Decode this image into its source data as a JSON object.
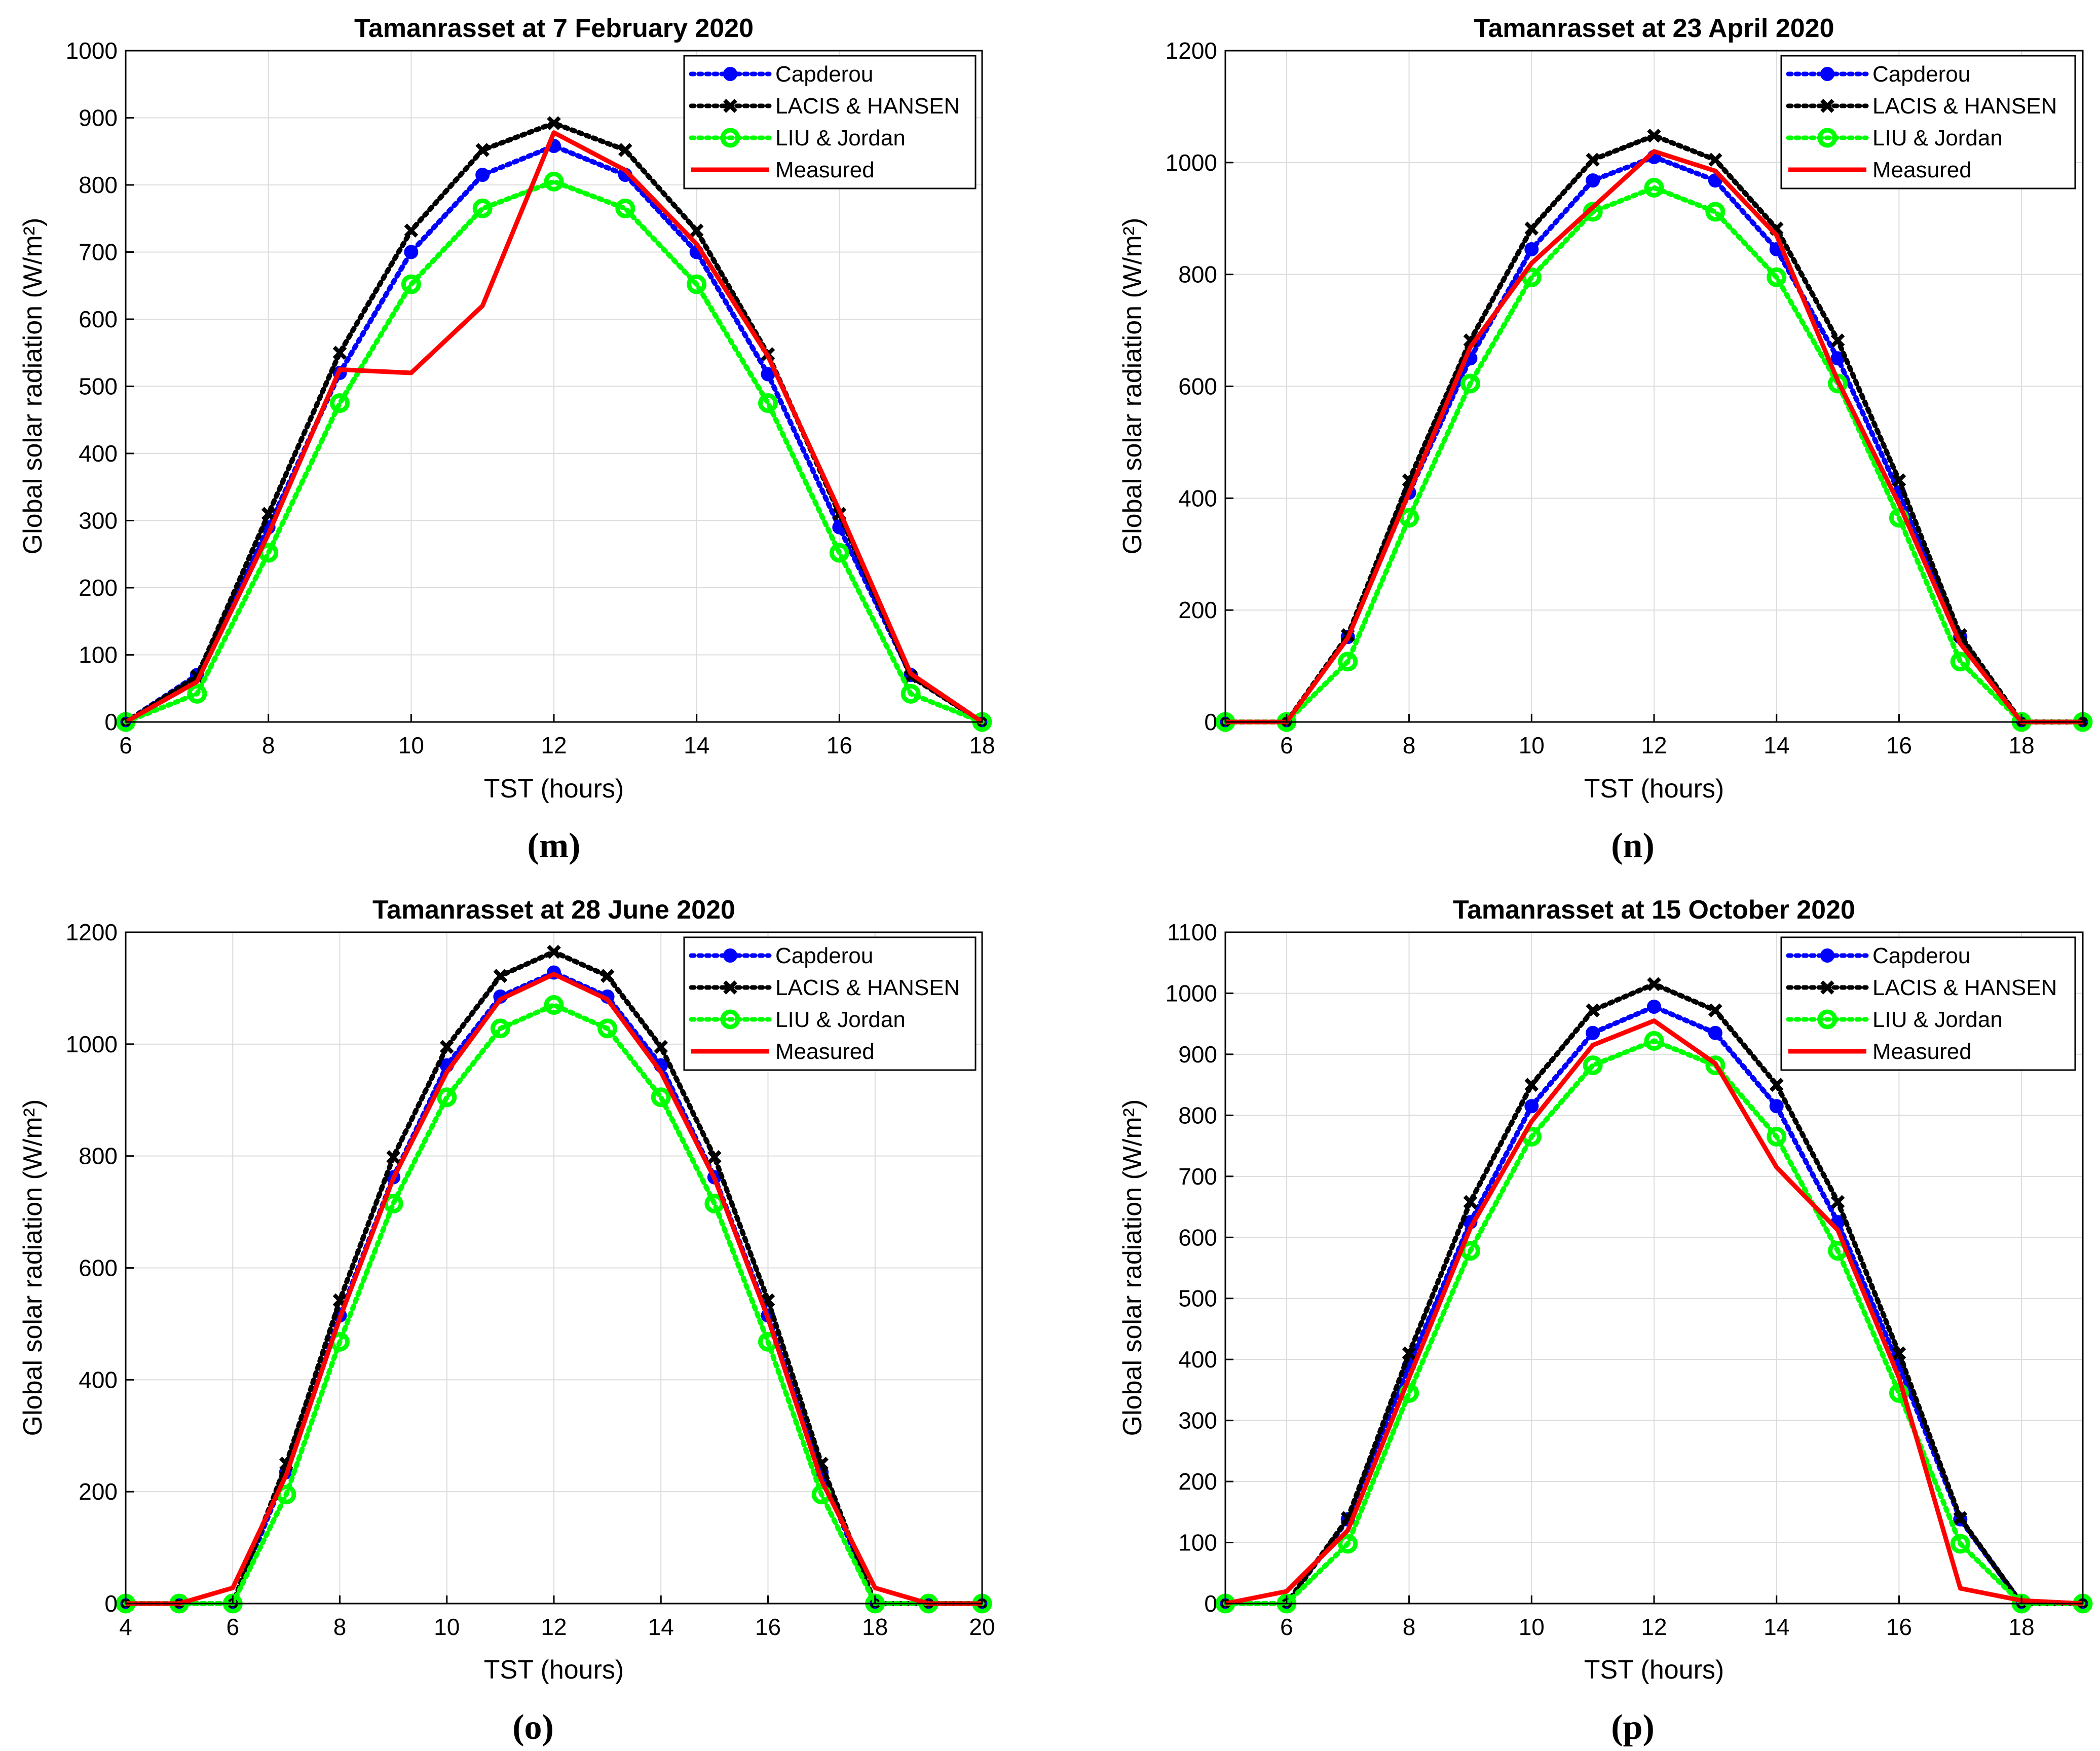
{
  "colors": {
    "capderou": "#0000ff",
    "lacis": "#000000",
    "liu": "#00ff00",
    "measured": "#ff0000",
    "grid": "#dcdcdc"
  },
  "chart_data": [
    {
      "id": "m",
      "type": "line",
      "caption_letter": "m",
      "title": "Tamanrasset at 7 February 2020",
      "xlabel": "TST (hours)",
      "ylabel": "Global solar radiation (W/m²)",
      "xlim": [
        6,
        18
      ],
      "ylim": [
        0,
        1000
      ],
      "xticks": [
        "6",
        "8",
        "10",
        "12",
        "14",
        "16",
        "18"
      ],
      "yticks": [
        "0",
        "100",
        "200",
        "300",
        "400",
        "500",
        "600",
        "700",
        "800",
        "900",
        "1000"
      ],
      "legend_position": "top-right",
      "series": [
        {
          "name": "Capderou",
          "x": [
            6,
            7,
            8,
            9,
            10,
            11,
            12,
            13,
            14,
            15,
            16,
            17,
            18
          ],
          "values": [
            0,
            70,
            290,
            520,
            700,
            815,
            858,
            815,
            700,
            518,
            290,
            70,
            0
          ]
        },
        {
          "name": "LACIS & HANSEN",
          "x": [
            6,
            7,
            8,
            9,
            10,
            11,
            12,
            13,
            14,
            15,
            16,
            17,
            18
          ],
          "values": [
            0,
            68,
            310,
            550,
            732,
            852,
            892,
            852,
            732,
            548,
            310,
            68,
            0
          ]
        },
        {
          "name": "LIU & Jordan",
          "x": [
            6,
            7,
            8,
            9,
            10,
            11,
            12,
            13,
            14,
            15,
            16,
            17,
            18
          ],
          "values": [
            0,
            42,
            252,
            475,
            652,
            765,
            805,
            765,
            652,
            475,
            252,
            42,
            0
          ]
        },
        {
          "name": "Measured",
          "x": [
            6,
            7,
            8,
            9,
            10,
            11,
            12,
            13,
            14,
            15,
            16,
            17,
            18
          ],
          "values": [
            0,
            60,
            280,
            525,
            520,
            620,
            878,
            822,
            712,
            545,
            315,
            72,
            0
          ]
        }
      ]
    },
    {
      "id": "n",
      "type": "line",
      "caption_letter": "n",
      "title": "Tamanrasset at 23 April 2020",
      "xlabel": "TST (hours)",
      "ylabel": "Global solar radiation (W/m²)",
      "xlim": [
        5,
        19
      ],
      "ylim": [
        0,
        1200
      ],
      "xticks": [
        "6",
        "8",
        "10",
        "12",
        "14",
        "16",
        "18"
      ],
      "yticks": [
        "0",
        "200",
        "400",
        "600",
        "800",
        "1000",
        "1200"
      ],
      "legend_position": "top-right",
      "series": [
        {
          "name": "Capderou",
          "x": [
            5,
            6,
            7,
            8,
            9,
            10,
            11,
            12,
            13,
            14,
            15,
            16,
            17,
            18,
            19
          ],
          "values": [
            0,
            0,
            152,
            410,
            650,
            845,
            968,
            1010,
            968,
            845,
            650,
            410,
            152,
            0,
            0
          ]
        },
        {
          "name": "LACIS & HANSEN",
          "x": [
            5,
            6,
            7,
            8,
            9,
            10,
            11,
            12,
            13,
            14,
            15,
            16,
            17,
            18,
            19
          ],
          "values": [
            0,
            0,
            155,
            432,
            682,
            882,
            1005,
            1048,
            1005,
            882,
            682,
            432,
            155,
            0,
            0
          ]
        },
        {
          "name": "LIU & Jordan",
          "x": [
            5,
            6,
            7,
            8,
            9,
            10,
            11,
            12,
            13,
            14,
            15,
            16,
            17,
            18,
            19
          ],
          "values": [
            0,
            0,
            108,
            365,
            605,
            795,
            912,
            955,
            912,
            795,
            605,
            365,
            108,
            0,
            0
          ]
        },
        {
          "name": "Measured",
          "x": [
            5,
            6,
            7,
            8,
            9,
            10,
            11,
            12,
            13,
            14,
            15,
            16,
            17,
            18,
            19
          ],
          "values": [
            0,
            0,
            150,
            410,
            670,
            820,
            920,
            1020,
            985,
            870,
            610,
            390,
            140,
            0,
            0
          ]
        }
      ]
    },
    {
      "id": "o",
      "type": "line",
      "caption_letter": "o",
      "title": "Tamanrasset at 28 June 2020",
      "xlabel": "TST (hours)",
      "ylabel": "Global solar radiation (W/m²)",
      "xlim": [
        4,
        20
      ],
      "ylim": [
        0,
        1200
      ],
      "xticks": [
        "4",
        "6",
        "8",
        "10",
        "12",
        "14",
        "16",
        "18",
        "20"
      ],
      "yticks": [
        "0",
        "200",
        "400",
        "600",
        "800",
        "1000",
        "1200"
      ],
      "legend_position": "top-right",
      "series": [
        {
          "name": "Capderou",
          "x": [
            4,
            5,
            6,
            7,
            8,
            9,
            10,
            11,
            12,
            13,
            14,
            15,
            16,
            17,
            18,
            19,
            20
          ],
          "values": [
            0,
            0,
            0,
            235,
            515,
            762,
            962,
            1085,
            1128,
            1085,
            962,
            762,
            515,
            235,
            0,
            0,
            0
          ]
        },
        {
          "name": "LACIS & HANSEN",
          "x": [
            4,
            5,
            6,
            7,
            8,
            9,
            10,
            11,
            12,
            13,
            14,
            15,
            16,
            17,
            18,
            19,
            20
          ],
          "values": [
            0,
            0,
            0,
            250,
            542,
            798,
            995,
            1122,
            1165,
            1122,
            995,
            798,
            542,
            250,
            0,
            0,
            0
          ]
        },
        {
          "name": "LIU & Jordan",
          "x": [
            4,
            5,
            6,
            7,
            8,
            9,
            10,
            11,
            12,
            13,
            14,
            15,
            16,
            17,
            18,
            19,
            20
          ],
          "values": [
            0,
            0,
            0,
            195,
            468,
            715,
            905,
            1028,
            1070,
            1028,
            905,
            715,
            468,
            195,
            0,
            0,
            0
          ]
        },
        {
          "name": "Measured",
          "x": [
            4,
            5,
            6,
            7,
            8,
            9,
            10,
            11,
            12,
            13,
            14,
            15,
            16,
            17,
            18,
            19,
            20
          ],
          "values": [
            0,
            0,
            28,
            230,
            510,
            760,
            950,
            1080,
            1125,
            1080,
            950,
            760,
            510,
            220,
            28,
            0,
            0
          ]
        }
      ]
    },
    {
      "id": "p",
      "type": "line",
      "caption_letter": "p",
      "title": "Tamanrasset at 15 October 2020",
      "xlabel": "TST (hours)",
      "ylabel": "Global solar radiation (W/m²)",
      "xlim": [
        5,
        19
      ],
      "ylim": [
        0,
        1100
      ],
      "xticks": [
        "6",
        "8",
        "10",
        "12",
        "14",
        "16",
        "18"
      ],
      "yticks": [
        "0",
        "100",
        "200",
        "300",
        "400",
        "500",
        "600",
        "700",
        "800",
        "900",
        "1000",
        "1100"
      ],
      "legend_position": "top-right",
      "series": [
        {
          "name": "Capderou",
          "x": [
            5,
            6,
            7,
            8,
            9,
            10,
            11,
            12,
            13,
            14,
            15,
            16,
            17,
            18,
            19
          ],
          "values": [
            0,
            0,
            138,
            390,
            625,
            815,
            935,
            978,
            935,
            815,
            625,
            390,
            138,
            0,
            0
          ]
        },
        {
          "name": "LACIS & HANSEN",
          "x": [
            5,
            6,
            7,
            8,
            9,
            10,
            11,
            12,
            13,
            14,
            15,
            16,
            17,
            18,
            19
          ],
          "values": [
            0,
            0,
            140,
            410,
            658,
            850,
            972,
            1015,
            972,
            850,
            658,
            410,
            140,
            0,
            0
          ]
        },
        {
          "name": "LIU & Jordan",
          "x": [
            5,
            6,
            7,
            8,
            9,
            10,
            11,
            12,
            13,
            14,
            15,
            16,
            17,
            18,
            19
          ],
          "values": [
            0,
            0,
            98,
            345,
            578,
            765,
            882,
            922,
            882,
            765,
            578,
            345,
            98,
            0,
            0
          ]
        },
        {
          "name": "Measured",
          "x": [
            5,
            6,
            7,
            8,
            9,
            10,
            11,
            12,
            13,
            14,
            15,
            16,
            17,
            18,
            19
          ],
          "values": [
            0,
            20,
            120,
            370,
            615,
            790,
            915,
            955,
            885,
            715,
            612,
            370,
            25,
            5,
            0
          ]
        }
      ]
    }
  ]
}
